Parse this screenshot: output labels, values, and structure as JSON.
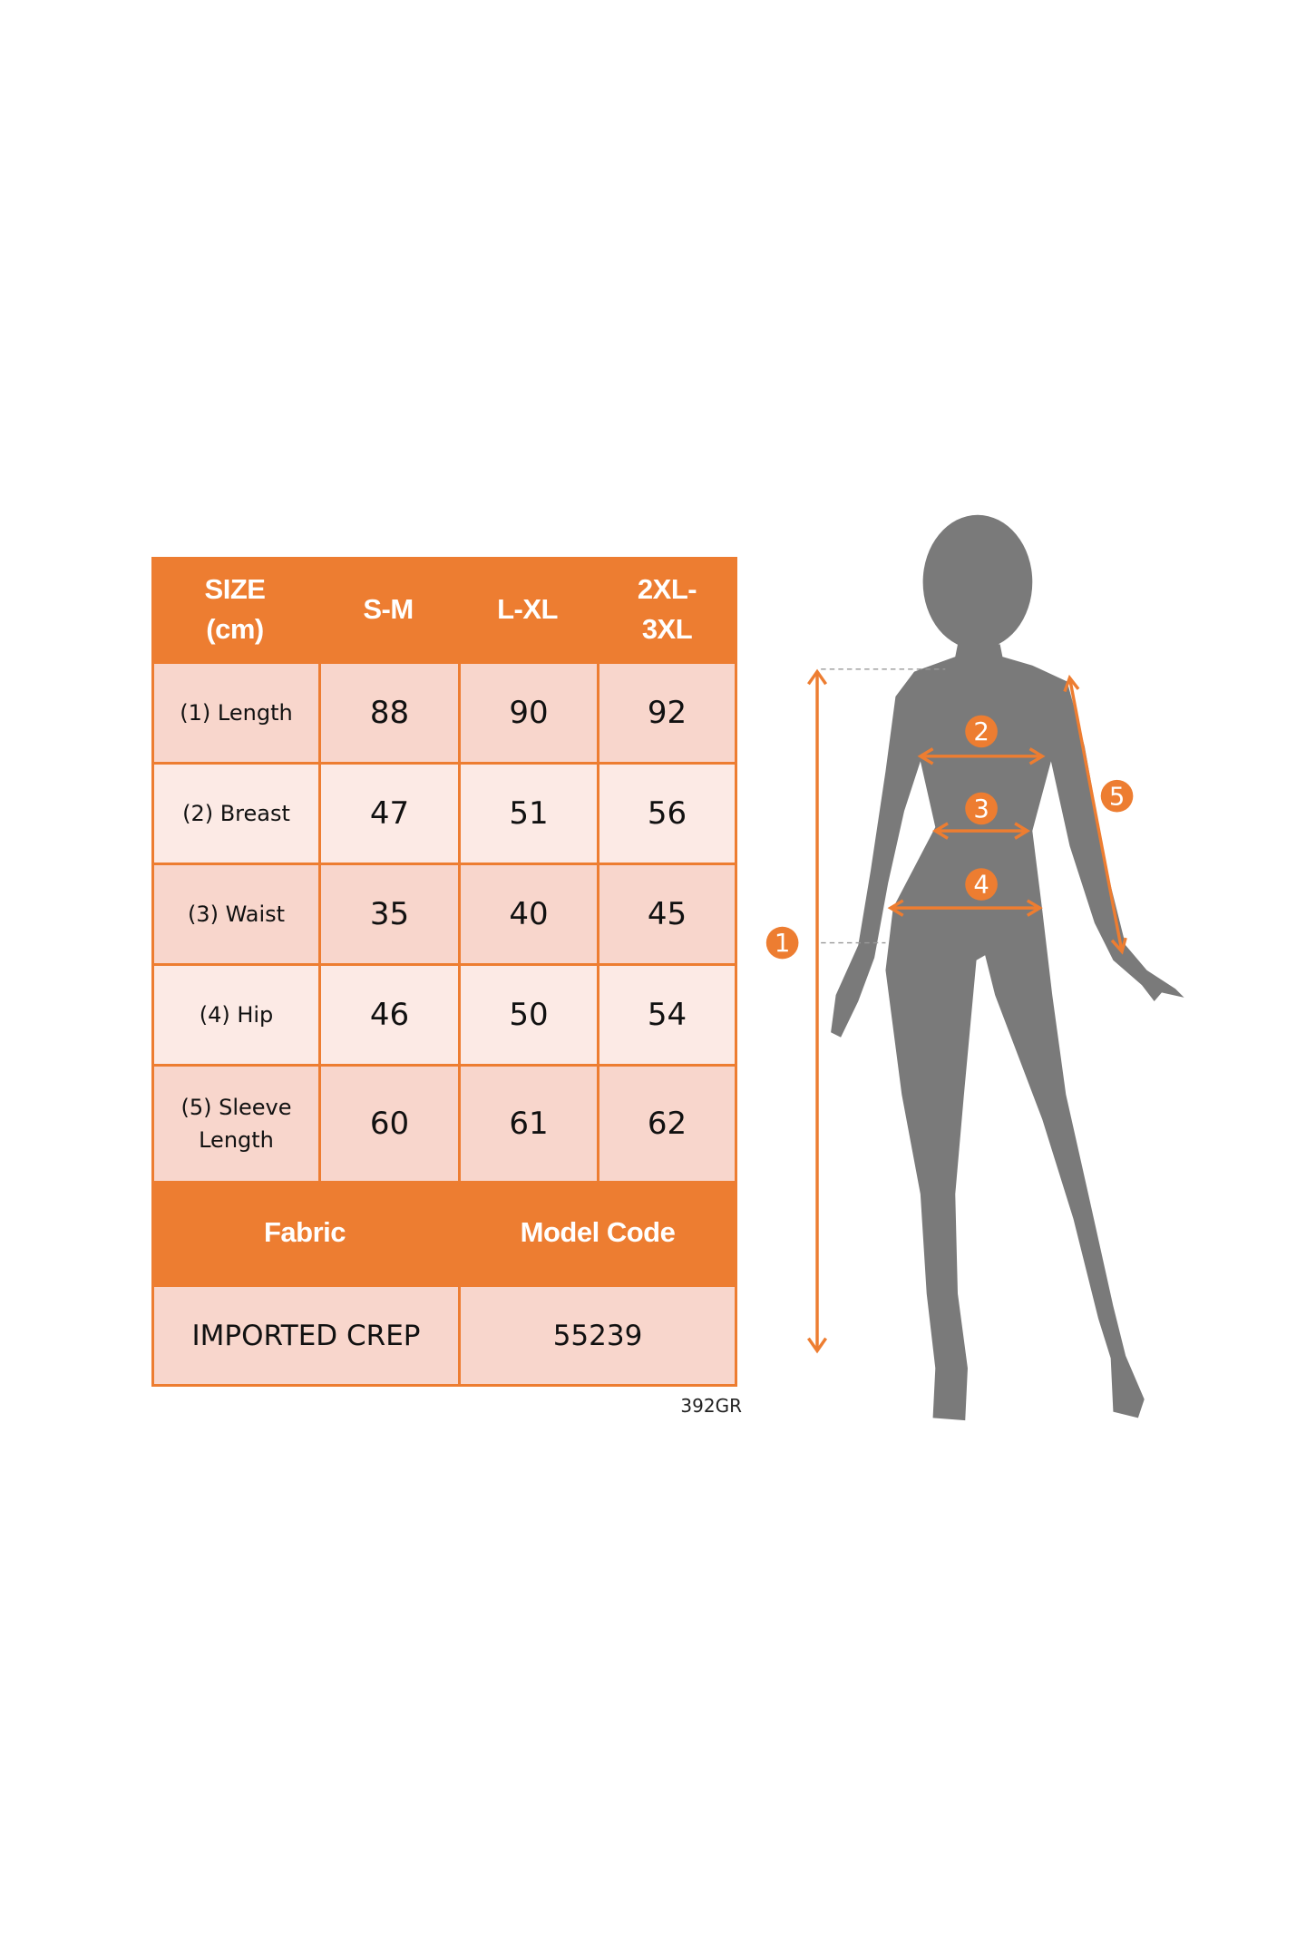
{
  "table": {
    "header": [
      "SIZE\n(cm)",
      "S-M",
      "L-XL",
      "2XL-\n3XL"
    ],
    "rows": [
      {
        "label": "(1) Length",
        "values": [
          "88",
          "90",
          "92"
        ]
      },
      {
        "label": "(2) Breast",
        "values": [
          "47",
          "51",
          "56"
        ]
      },
      {
        "label": "(3) Waist",
        "values": [
          "35",
          "40",
          "45"
        ]
      },
      {
        "label": "(4) Hip",
        "values": [
          "46",
          "50",
          "54"
        ]
      },
      {
        "label": "(5) Sleeve\nLength",
        "values": [
          "60",
          "61",
          "62"
        ]
      }
    ],
    "fabric_header": "Fabric",
    "model_code_header": "Model Code",
    "fabric_value": "IMPORTED CREP",
    "model_code_value": "55239"
  },
  "footer_code": "392GR",
  "figure": {
    "markers": [
      "1",
      "2",
      "3",
      "4",
      "5"
    ],
    "accent_color": "#ED7D31",
    "silhouette_color": "#7A7A7A"
  }
}
